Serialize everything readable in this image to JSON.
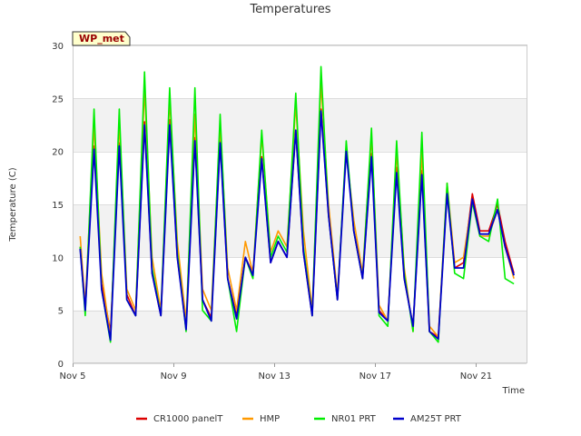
{
  "chart_data": {
    "type": "line",
    "title": "Temperatures",
    "xlabel": "Time",
    "ylabel": "Temperature (C)",
    "ylim": [
      0,
      30
    ],
    "xlim": [
      0,
      18
    ],
    "yticks": [
      0,
      5,
      10,
      15,
      20,
      25,
      30
    ],
    "xticks": [
      {
        "value": 0,
        "label": "Nov 5"
      },
      {
        "value": 4,
        "label": "Nov 9"
      },
      {
        "value": 8,
        "label": "Nov 13"
      },
      {
        "value": 12,
        "label": "Nov 17"
      },
      {
        "value": 16,
        "label": "Nov 21"
      }
    ],
    "station_label": "WP_met",
    "legend_position": "bottom",
    "grid": true,
    "x": [
      0.3,
      0.5,
      0.85,
      1.15,
      1.5,
      1.85,
      2.15,
      2.5,
      2.85,
      3.15,
      3.5,
      3.85,
      4.15,
      4.5,
      4.85,
      5.15,
      5.5,
      5.85,
      6.15,
      6.5,
      6.85,
      7.15,
      7.5,
      7.85,
      8.15,
      8.5,
      8.85,
      9.15,
      9.5,
      9.85,
      10.15,
      10.5,
      10.85,
      11.15,
      11.5,
      11.85,
      12.15,
      12.5,
      12.85,
      13.15,
      13.5,
      13.85,
      14.15,
      14.5,
      14.85,
      15.15,
      15.5,
      15.85,
      16.15,
      16.5,
      16.85,
      17.15,
      17.5
    ],
    "series": [
      {
        "name": "CR1000 panelT",
        "color": "#dd0000",
        "values": [
          11,
          5.5,
          20.5,
          7.5,
          3,
          20.8,
          6.5,
          4.5,
          22.8,
          8.5,
          4.5,
          23,
          10,
          3.5,
          21.3,
          6,
          4.3,
          21,
          8,
          4.5,
          10,
          8.5,
          19.5,
          9.5,
          11.5,
          10,
          22,
          10.5,
          4.5,
          24,
          14,
          6,
          20.5,
          12.5,
          8,
          19.8,
          5,
          4,
          18.5,
          8,
          3.5,
          18.2,
          3,
          2.5,
          16.2,
          9,
          9.5,
          16,
          12.5,
          12.5,
          15,
          11.5,
          8.5
        ]
      },
      {
        "name": "HMP",
        "color": "#ff9900",
        "values": [
          12,
          5.5,
          22.5,
          8.5,
          2.5,
          22.8,
          7,
          5,
          26,
          10,
          5,
          25,
          11.5,
          4,
          23.5,
          7,
          5,
          22.5,
          9,
          5,
          11.5,
          8.5,
          21.5,
          10.5,
          12.5,
          11,
          24.5,
          12.5,
          5,
          26.5,
          15,
          6.5,
          20,
          13.5,
          8.5,
          21.5,
          5.5,
          4,
          20,
          9,
          3,
          20,
          3.5,
          2.5,
          17,
          9.5,
          10,
          15.5,
          12,
          12,
          14.5,
          11,
          8
        ]
      },
      {
        "name": "NR01 PRT",
        "color": "#00ee00",
        "values": [
          11,
          4.5,
          24,
          7,
          2,
          24,
          6,
          4.5,
          27.5,
          9,
          4.5,
          26,
          10.5,
          3,
          26,
          5,
          4,
          23.5,
          8,
          3,
          10,
          8,
          22,
          10,
          12,
          10.5,
          25.5,
          11,
          4.5,
          28,
          14,
          6,
          21,
          12.5,
          8,
          22.2,
          4.5,
          3.5,
          21,
          8.5,
          3,
          21.8,
          3,
          2,
          17,
          8.5,
          8,
          15.2,
          12,
          11.5,
          15.5,
          8,
          7.5
        ]
      },
      {
        "name": "AM25T PRT",
        "color": "#0000cc",
        "values": [
          10.8,
          5,
          20.2,
          7,
          2.2,
          20.5,
          6,
          4.5,
          22.5,
          8.5,
          4.5,
          22.5,
          10,
          3.2,
          21,
          6,
          4,
          20.8,
          8,
          4.2,
          10,
          8.3,
          19.3,
          9.5,
          11.5,
          10,
          22,
          10.5,
          4.5,
          23.8,
          14,
          6,
          20,
          12.5,
          8,
          19.5,
          4.8,
          4,
          18,
          8,
          3.5,
          17.8,
          3,
          2.3,
          16,
          9,
          9,
          15.5,
          12.2,
          12.2,
          14.5,
          11,
          8.3
        ]
      }
    ]
  }
}
